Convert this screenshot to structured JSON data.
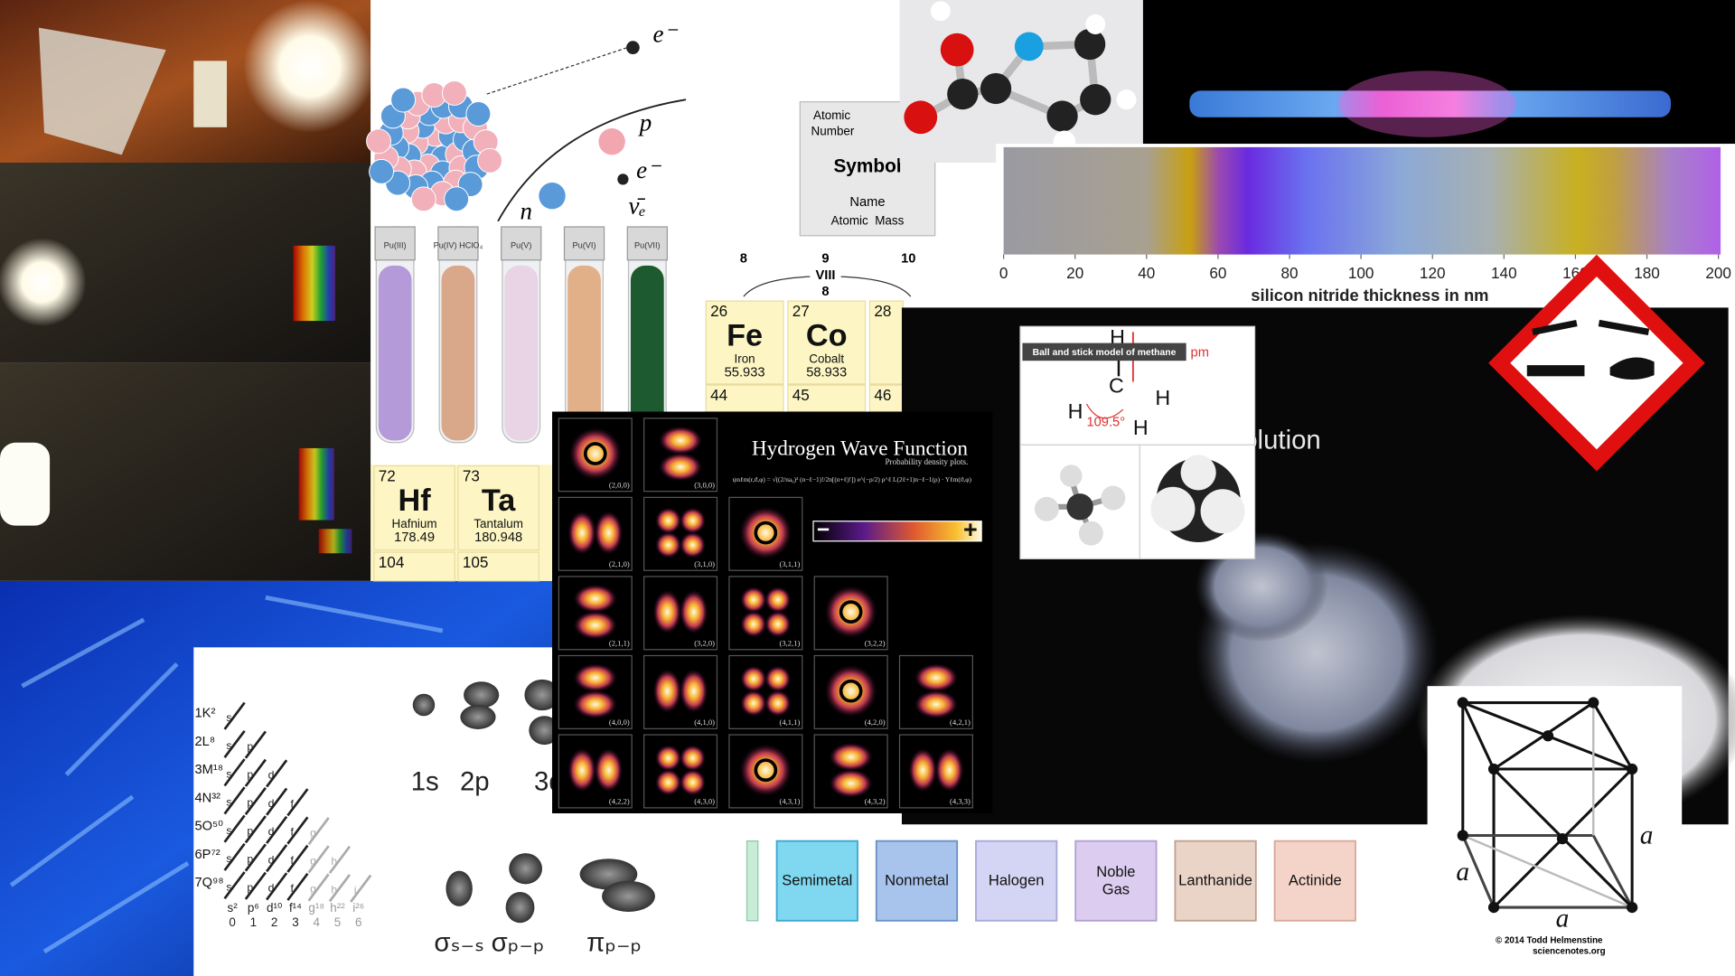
{
  "atom_diagram": {
    "labels": [
      "e⁻",
      "p",
      "e⁻",
      "ν̄ₑ",
      "n"
    ]
  },
  "test_tubes": [
    "Pu(III)",
    "Pu(IV) HClO₄",
    "Pu(V)",
    "Pu(VI)",
    "Pu(VII)"
  ],
  "element_key": {
    "atomic_number": [
      "Atomic",
      "Number"
    ],
    "symbol": "Symbol",
    "name": "Name",
    "atomic_mass": "Atomic  Mass"
  },
  "periodic_table": {
    "group_header": [
      "8",
      "9",
      "VIII",
      "8",
      "10"
    ],
    "elements": [
      {
        "number": 26,
        "symbol": "Fe",
        "name": "Iron",
        "mass": 55.933
      },
      {
        "number": 27,
        "symbol": "Co",
        "name": "Cobalt",
        "mass": 58.933
      },
      {
        "number": 28
      },
      {
        "number": 44
      },
      {
        "number": 45
      },
      {
        "number": 46
      },
      {
        "number": 72,
        "symbol": "Hf",
        "name": "Hafnium",
        "mass": 178.49
      },
      {
        "number": 73,
        "symbol": "Ta",
        "name": "Tantalum",
        "mass": 180.948
      },
      {
        "number": 104
      },
      {
        "number": 105
      }
    ]
  },
  "spectrum_axis": {
    "ticks": [
      0,
      20,
      40,
      60,
      80,
      100,
      120,
      140,
      160,
      180,
      200
    ],
    "title": "silicon nitride thickness in nm"
  },
  "hydrogen": {
    "title": "Hydrogen Wave Function",
    "subtitle": "Probability density plots.",
    "formula": "ψnℓm(r,ϑ,φ) = √((2/na₀)³ (n−ℓ−1)!/2n[(n+ℓ)!]) e^(−ρ/2) ρ^ℓ L(2ℓ+1)n−ℓ−1(ρ) · Yℓm(ϑ,φ)",
    "orbitals": [
      "(2,0,0)",
      "(3,0,0)",
      "(2,1,0)",
      "(3,1,0)",
      "(3,1,1)",
      "(2,1,1)",
      "(3,2,0)",
      "(3,2,1)",
      "(3,2,2)",
      "(4,0,0)",
      "(4,1,0)",
      "(4,1,1)",
      "(4,2,0)",
      "(4,2,1)",
      "(4,2,2)",
      "(4,3,0)",
      "(4,3,1)",
      "(4,3,2)",
      "(4,3,3)"
    ],
    "scale": [
      "−",
      "+"
    ]
  },
  "methane": {
    "caption": "Ball and stick model of methane",
    "unit": "pm",
    "angle": "109.5°",
    "atoms": [
      "H",
      "C",
      "H",
      "H",
      "H"
    ]
  },
  "video_caption": "O₃ Solution",
  "aufbau": {
    "shells": [
      "1K²",
      "2L⁸",
      "3M¹⁸",
      "4N³²",
      "5O⁵⁰",
      "6P⁷²",
      "7Q⁹⁸"
    ],
    "letters": [
      "s",
      "p",
      "d",
      "f",
      "g",
      "h",
      "i"
    ],
    "subshells": [
      "s²",
      "p⁶",
      "d¹⁰",
      "f¹⁴",
      "g¹⁸",
      "h²²",
      "i²⁶"
    ],
    "l_numbers": [
      0,
      1,
      2,
      3,
      4,
      5,
      6
    ]
  },
  "orbital_shapes": [
    "1s",
    "2p",
    "3d",
    "σₛ₋ₛ",
    "σₚ₋ₚ",
    "πₚ₋ₚ"
  ],
  "categories": [
    "Semimetal",
    "Nonmetal",
    "Halogen",
    "Noble Gas",
    "Lanthanide",
    "Actinide"
  ],
  "crystal": {
    "edge_labels": [
      "a",
      "a",
      "a"
    ],
    "credit": [
      "© 2014 Todd Helmenstine",
      "sciencenotes.org"
    ]
  }
}
